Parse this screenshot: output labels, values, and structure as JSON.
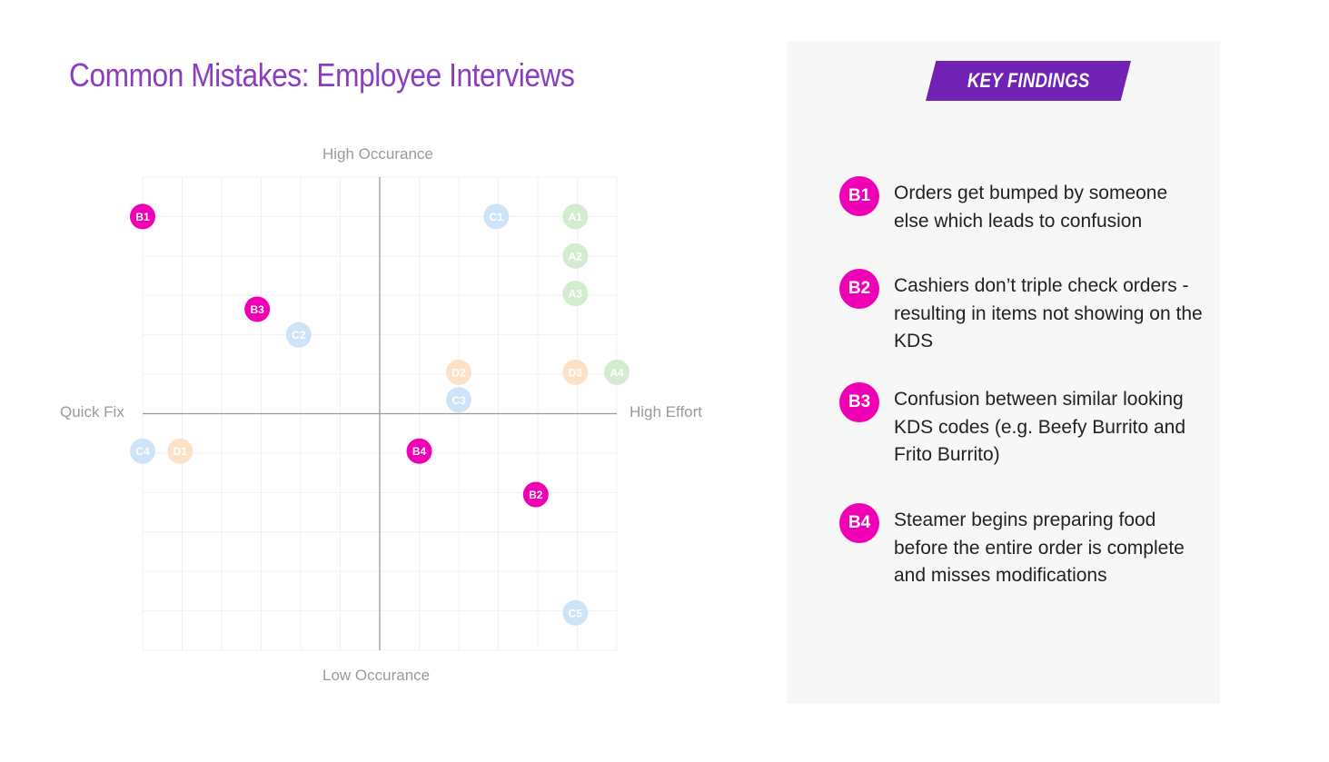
{
  "title": "Common Mistakes: Employee Interviews",
  "chart_data": {
    "type": "scatter",
    "title": "",
    "axis_labels": {
      "top": "High Occurance",
      "bottom": "Low Occurance",
      "left": "Quick Fix",
      "right": "High Effort"
    },
    "xlim": [
      -6,
      6
    ],
    "ylim": [
      -6,
      6
    ],
    "grid": true,
    "points": [
      {
        "label": "B1",
        "x": -6,
        "y": 5,
        "highlight": true,
        "color": "#f000b4"
      },
      {
        "label": "B3",
        "x": -3.1,
        "y": 2.65,
        "highlight": true,
        "color": "#f000b4"
      },
      {
        "label": "B4",
        "x": 1,
        "y": -0.95,
        "highlight": true,
        "color": "#f000b4"
      },
      {
        "label": "B2",
        "x": 3.95,
        "y": -2.05,
        "highlight": true,
        "color": "#f000b4"
      },
      {
        "label": "C1",
        "x": 2.95,
        "y": 5,
        "highlight": false,
        "color": "#cfe3f7"
      },
      {
        "label": "A1",
        "x": 4.95,
        "y": 5,
        "highlight": false,
        "color": "#d3ecd0"
      },
      {
        "label": "A2",
        "x": 4.95,
        "y": 4,
        "highlight": false,
        "color": "#d3ecd0"
      },
      {
        "label": "A3",
        "x": 4.95,
        "y": 3.05,
        "highlight": false,
        "color": "#d3ecd0"
      },
      {
        "label": "C2",
        "x": -2.05,
        "y": 2,
        "highlight": false,
        "color": "#cfe3f7"
      },
      {
        "label": "D2",
        "x": 2,
        "y": 1.05,
        "highlight": false,
        "color": "#fde1c7"
      },
      {
        "label": "D3",
        "x": 4.95,
        "y": 1.05,
        "highlight": false,
        "color": "#fde1c7"
      },
      {
        "label": "A4",
        "x": 6,
        "y": 1.05,
        "highlight": false,
        "color": "#d3ecd0"
      },
      {
        "label": "C3",
        "x": 2,
        "y": 0.35,
        "highlight": false,
        "color": "#cfe3f7"
      },
      {
        "label": "C4",
        "x": -6,
        "y": -0.95,
        "highlight": false,
        "color": "#cfe3f7"
      },
      {
        "label": "D1",
        "x": -5.05,
        "y": -0.95,
        "highlight": false,
        "color": "#fde1c7"
      },
      {
        "label": "C5",
        "x": 4.95,
        "y": -5.05,
        "highlight": false,
        "color": "#cfe3f7"
      }
    ]
  },
  "key_findings": {
    "heading": "KEY FINDINGS",
    "items": [
      {
        "id": "B1",
        "text": "Orders get bumped by someone else which leads to confusion"
      },
      {
        "id": "B2",
        "text": "Cashiers don’t triple check orders - resulting in items not showing on the KDS"
      },
      {
        "id": "B3",
        "text": "Confusion between similar looking KDS codes (e.g. Beefy Burrito and Frito Burrito)"
      },
      {
        "id": "B4",
        "text": "Steamer begins preparing food before the entire order is complete and misses modifications"
      }
    ]
  },
  "colors": {
    "title": "#8a3dc2",
    "banner": "#6f22b3",
    "highlight": "#f000b4",
    "panel": "#f7f7f7"
  }
}
